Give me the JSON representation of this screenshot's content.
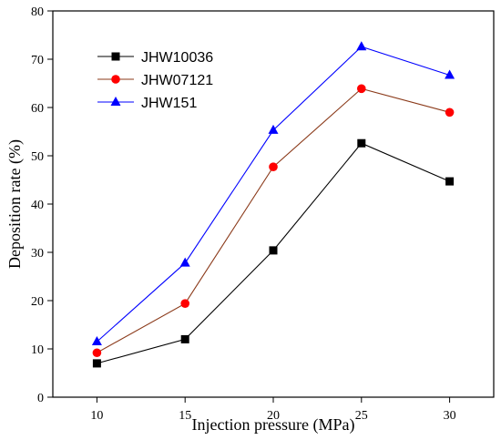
{
  "chart_data": {
    "type": "line",
    "title": "",
    "xlabel": "Injection pressure (MPa)",
    "ylabel": "Deposition rate (%)",
    "x": [
      10,
      15,
      20,
      25,
      30
    ],
    "x_ticks": [
      10,
      15,
      20,
      25,
      30
    ],
    "xlim": [
      7.5,
      32.5
    ],
    "ylim": [
      0,
      80
    ],
    "y_ticks": [
      0,
      10,
      20,
      30,
      40,
      50,
      60,
      70,
      80
    ],
    "grid": false,
    "legend_position": "top-left",
    "series": [
      {
        "name": "JHW10036",
        "values": [
          7.0,
          12.0,
          30.4,
          52.6,
          44.7
        ],
        "color": "#000000",
        "marker": "square"
      },
      {
        "name": "JHW07121",
        "values": [
          9.2,
          19.4,
          47.7,
          63.9,
          59.0
        ],
        "color": "#ff0000",
        "line_color": "#8b3a1a",
        "marker": "circle"
      },
      {
        "name": "JHW151",
        "values": [
          11.5,
          27.8,
          55.3,
          72.6,
          66.7
        ],
        "color": "#0000ff",
        "marker": "triangle"
      }
    ]
  }
}
